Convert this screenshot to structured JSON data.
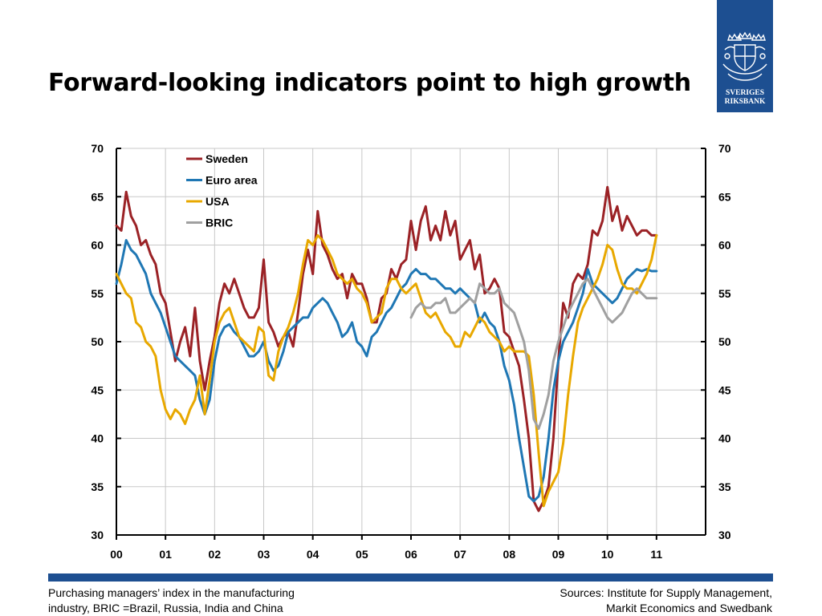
{
  "slide": {
    "title": "Forward-looking indicators point to high growth",
    "logo_line1": "SVERIGES",
    "logo_line2": "RIKSBANK",
    "footer_left_line1": "Purchasing managers’ index in the manufacturing",
    "footer_left_line2": "industry, BRIC =Brazil, Russia, India and China",
    "footer_right_line1": "Sources: Institute for Supply Management,",
    "footer_right_line2": "Markit Economics and Swedbank"
  },
  "colors": {
    "brand": "#1d4f91",
    "sweden": "#9b2226",
    "euro_area": "#1f77b4",
    "usa": "#e8a800",
    "bric": "#a0a0a0"
  },
  "chart_data": {
    "type": "line",
    "title": "",
    "xlabel": "",
    "ylabel": "",
    "x_tick_labels": [
      "00",
      "01",
      "02",
      "03",
      "04",
      "05",
      "06",
      "07",
      "08",
      "09",
      "10",
      "11"
    ],
    "y_tick_labels_left": [
      "30",
      "35",
      "40",
      "45",
      "50",
      "55",
      "60",
      "65",
      "70"
    ],
    "y_tick_labels_right": [
      "30",
      "35",
      "40",
      "45",
      "50",
      "55",
      "60",
      "65",
      "70"
    ],
    "xlim": [
      2000.0,
      2012.0
    ],
    "ylim": [
      30,
      70
    ],
    "grid": true,
    "legend_position": "top-left",
    "series": [
      {
        "name": "Sweden",
        "color": "#9b2226",
        "x": [
          2000.0,
          2000.1,
          2000.2,
          2000.3,
          2000.4,
          2000.5,
          2000.6,
          2000.7,
          2000.8,
          2000.9,
          2001.0,
          2001.1,
          2001.2,
          2001.3,
          2001.4,
          2001.5,
          2001.6,
          2001.7,
          2001.8,
          2001.9,
          2002.0,
          2002.1,
          2002.2,
          2002.3,
          2002.4,
          2002.5,
          2002.6,
          2002.7,
          2002.8,
          2002.9,
          2003.0,
          2003.1,
          2003.2,
          2003.3,
          2003.4,
          2003.5,
          2003.6,
          2003.7,
          2003.8,
          2003.9,
          2004.0,
          2004.1,
          2004.2,
          2004.3,
          2004.4,
          2004.5,
          2004.6,
          2004.7,
          2004.8,
          2004.9,
          2005.0,
          2005.1,
          2005.2,
          2005.3,
          2005.4,
          2005.5,
          2005.6,
          2005.7,
          2005.8,
          2005.9,
          2006.0,
          2006.1,
          2006.2,
          2006.3,
          2006.4,
          2006.5,
          2006.6,
          2006.7,
          2006.8,
          2006.9,
          2007.0,
          2007.1,
          2007.2,
          2007.3,
          2007.4,
          2007.5,
          2007.6,
          2007.7,
          2007.8,
          2007.9,
          2008.0,
          2008.1,
          2008.2,
          2008.3,
          2008.4,
          2008.5,
          2008.6,
          2008.7,
          2008.8,
          2008.9,
          2009.0,
          2009.1,
          2009.2,
          2009.3,
          2009.4,
          2009.5,
          2009.6,
          2009.7,
          2009.8,
          2009.9,
          2010.0,
          2010.1,
          2010.2,
          2010.3,
          2010.4,
          2010.5,
          2010.6,
          2010.7,
          2010.8,
          2010.9,
          2011.0
        ],
        "y": [
          62.0,
          61.5,
          65.5,
          63.0,
          62.0,
          60.0,
          60.5,
          59.0,
          58.0,
          55.0,
          54.0,
          51.0,
          48.0,
          50.0,
          51.5,
          48.5,
          53.5,
          48.0,
          45.0,
          48.0,
          50.5,
          54.0,
          56.0,
          55.0,
          56.5,
          55.0,
          53.5,
          52.5,
          52.5,
          53.5,
          58.5,
          52.0,
          51.0,
          49.5,
          50.5,
          51.0,
          49.5,
          53.0,
          57.0,
          59.5,
          57.0,
          63.5,
          60.0,
          59.0,
          57.5,
          56.5,
          57.0,
          54.5,
          57.0,
          56.0,
          56.0,
          54.5,
          52.0,
          52.0,
          54.5,
          55.0,
          57.5,
          56.5,
          58.0,
          58.5,
          62.5,
          59.5,
          62.5,
          64.0,
          60.5,
          62.0,
          60.5,
          63.5,
          61.0,
          62.5,
          58.5,
          59.5,
          60.5,
          57.5,
          59.0,
          55.0,
          55.5,
          56.5,
          55.5,
          51.0,
          50.5,
          49.0,
          47.5,
          44.0,
          40.0,
          33.5,
          32.5,
          33.5,
          35.0,
          40.0,
          48.0,
          54.0,
          52.5,
          56.0,
          57.0,
          56.5,
          58.0,
          61.5,
          61.0,
          62.5,
          66.0,
          62.5,
          64.0,
          61.5,
          63.0,
          62.0,
          61.0,
          61.5,
          61.5,
          61.0,
          61.0
        ]
      },
      {
        "name": "Euro area",
        "color": "#1f77b4",
        "x": [
          2000.0,
          2000.1,
          2000.2,
          2000.3,
          2000.4,
          2000.5,
          2000.6,
          2000.7,
          2000.8,
          2000.9,
          2001.0,
          2001.1,
          2001.2,
          2001.3,
          2001.4,
          2001.5,
          2001.6,
          2001.7,
          2001.8,
          2001.9,
          2002.0,
          2002.1,
          2002.2,
          2002.3,
          2002.4,
          2002.5,
          2002.6,
          2002.7,
          2002.8,
          2002.9,
          2003.0,
          2003.1,
          2003.2,
          2003.3,
          2003.4,
          2003.5,
          2003.6,
          2003.7,
          2003.8,
          2003.9,
          2004.0,
          2004.1,
          2004.2,
          2004.3,
          2004.4,
          2004.5,
          2004.6,
          2004.7,
          2004.8,
          2004.9,
          2005.0,
          2005.1,
          2005.2,
          2005.3,
          2005.4,
          2005.5,
          2005.6,
          2005.7,
          2005.8,
          2005.9,
          2006.0,
          2006.1,
          2006.2,
          2006.3,
          2006.4,
          2006.5,
          2006.6,
          2006.7,
          2006.8,
          2006.9,
          2007.0,
          2007.1,
          2007.2,
          2007.3,
          2007.4,
          2007.5,
          2007.6,
          2007.7,
          2007.8,
          2007.9,
          2008.0,
          2008.1,
          2008.2,
          2008.3,
          2008.4,
          2008.5,
          2008.6,
          2008.7,
          2008.8,
          2008.9,
          2009.0,
          2009.1,
          2009.2,
          2009.3,
          2009.4,
          2009.5,
          2009.6,
          2009.7,
          2009.8,
          2009.9,
          2010.0,
          2010.1,
          2010.2,
          2010.3,
          2010.4,
          2010.5,
          2010.6,
          2010.7,
          2010.8,
          2010.9,
          2011.0
        ],
        "y": [
          56.0,
          58.0,
          60.5,
          59.5,
          59.0,
          58.0,
          57.0,
          55.0,
          54.0,
          53.0,
          51.5,
          50.0,
          48.5,
          48.0,
          47.5,
          47.0,
          46.5,
          44.0,
          42.5,
          44.0,
          48.0,
          50.5,
          51.5,
          51.8,
          51.0,
          50.5,
          49.5,
          48.5,
          48.5,
          49.0,
          50.0,
          48.0,
          47.0,
          47.5,
          49.0,
          51.0,
          51.5,
          52.0,
          52.5,
          52.5,
          53.5,
          54.0,
          54.5,
          54.0,
          53.0,
          52.0,
          50.5,
          51.0,
          52.0,
          50.0,
          49.5,
          48.5,
          50.5,
          51.0,
          52.0,
          53.0,
          53.5,
          54.5,
          55.5,
          56.0,
          57.0,
          57.5,
          57.0,
          57.0,
          56.5,
          56.5,
          56.0,
          55.5,
          55.5,
          55.0,
          55.5,
          55.0,
          54.5,
          54.0,
          52.0,
          53.0,
          52.0,
          51.5,
          50.0,
          47.5,
          46.0,
          43.5,
          40.0,
          37.0,
          34.0,
          33.5,
          34.0,
          36.0,
          40.0,
          45.0,
          48.0,
          50.0,
          51.0,
          52.0,
          53.5,
          55.0,
          57.5,
          56.0,
          55.5,
          55.0,
          54.5,
          54.0,
          54.5,
          55.5,
          56.5,
          57.0,
          57.5,
          57.3,
          57.5,
          57.3,
          57.3
        ]
      },
      {
        "name": "USA",
        "color": "#e8a800",
        "x": [
          2000.0,
          2000.1,
          2000.2,
          2000.3,
          2000.4,
          2000.5,
          2000.6,
          2000.7,
          2000.8,
          2000.9,
          2001.0,
          2001.1,
          2001.2,
          2001.3,
          2001.4,
          2001.5,
          2001.6,
          2001.7,
          2001.8,
          2001.9,
          2002.0,
          2002.1,
          2002.2,
          2002.3,
          2002.4,
          2002.5,
          2002.6,
          2002.7,
          2002.8,
          2002.9,
          2003.0,
          2003.1,
          2003.2,
          2003.3,
          2003.4,
          2003.5,
          2003.6,
          2003.7,
          2003.8,
          2003.9,
          2004.0,
          2004.1,
          2004.2,
          2004.3,
          2004.4,
          2004.5,
          2004.6,
          2004.7,
          2004.8,
          2004.9,
          2005.0,
          2005.1,
          2005.2,
          2005.3,
          2005.4,
          2005.5,
          2005.6,
          2005.7,
          2005.8,
          2005.9,
          2006.0,
          2006.1,
          2006.2,
          2006.3,
          2006.4,
          2006.5,
          2006.6,
          2006.7,
          2006.8,
          2006.9,
          2007.0,
          2007.1,
          2007.2,
          2007.3,
          2007.4,
          2007.5,
          2007.6,
          2007.7,
          2007.8,
          2007.9,
          2008.0,
          2008.1,
          2008.2,
          2008.3,
          2008.4,
          2008.5,
          2008.6,
          2008.7,
          2008.8,
          2008.9,
          2009.0,
          2009.1,
          2009.2,
          2009.3,
          2009.4,
          2009.5,
          2009.6,
          2009.7,
          2009.8,
          2009.9,
          2010.0,
          2010.1,
          2010.2,
          2010.3,
          2010.4,
          2010.5,
          2010.6,
          2010.7,
          2010.8,
          2010.9,
          2011.0
        ],
        "y": [
          57.0,
          56.0,
          55.0,
          54.5,
          52.0,
          51.5,
          50.0,
          49.5,
          48.5,
          45.0,
          43.0,
          42.0,
          43.0,
          42.5,
          41.5,
          43.0,
          44.0,
          46.5,
          42.5,
          46.0,
          50.0,
          52.0,
          53.0,
          53.5,
          52.0,
          50.5,
          50.0,
          49.5,
          49.0,
          51.5,
          51.0,
          46.5,
          46.0,
          49.0,
          50.5,
          51.5,
          53.0,
          55.0,
          58.0,
          60.5,
          60.0,
          61.0,
          60.5,
          59.5,
          58.5,
          57.0,
          56.5,
          56.0,
          56.5,
          55.5,
          55.0,
          54.0,
          52.0,
          52.5,
          53.0,
          55.5,
          56.5,
          56.5,
          55.5,
          55.0,
          55.5,
          56.0,
          54.5,
          53.0,
          52.5,
          53.0,
          52.0,
          51.0,
          50.5,
          49.5,
          49.5,
          51.0,
          50.5,
          51.5,
          52.5,
          52.0,
          51.0,
          50.5,
          50.0,
          49.0,
          49.5,
          49.0,
          49.0,
          49.0,
          48.5,
          44.5,
          38.5,
          33.0,
          34.5,
          35.5,
          36.5,
          39.5,
          44.5,
          48.5,
          52.0,
          53.5,
          54.5,
          55.5,
          56.5,
          58.0,
          60.0,
          59.5,
          57.5,
          56.0,
          55.5,
          55.5,
          55.0,
          56.0,
          57.0,
          58.5,
          61.0
        ]
      },
      {
        "name": "BRIC",
        "color": "#a0a0a0",
        "x": [
          2006.0,
          2006.1,
          2006.2,
          2006.3,
          2006.4,
          2006.5,
          2006.6,
          2006.7,
          2006.8,
          2006.9,
          2007.0,
          2007.1,
          2007.2,
          2007.3,
          2007.4,
          2007.5,
          2007.6,
          2007.7,
          2007.8,
          2007.9,
          2008.0,
          2008.1,
          2008.2,
          2008.3,
          2008.4,
          2008.5,
          2008.6,
          2008.7,
          2008.8,
          2008.9,
          2009.0,
          2009.1,
          2009.2,
          2009.3,
          2009.4,
          2009.5,
          2009.6,
          2009.7,
          2009.8,
          2009.9,
          2010.0,
          2010.1,
          2010.2,
          2010.3,
          2010.4,
          2010.5,
          2010.6,
          2010.7,
          2010.8,
          2010.9,
          2011.0
        ],
        "y": [
          52.5,
          53.5,
          54.0,
          53.5,
          53.5,
          54.0,
          54.0,
          54.5,
          53.0,
          53.0,
          53.5,
          54.0,
          54.5,
          54.0,
          56.0,
          55.5,
          55.0,
          55.0,
          55.5,
          54.0,
          53.5,
          53.0,
          51.5,
          50.0,
          47.0,
          42.0,
          41.0,
          42.5,
          44.5,
          48.0,
          50.0,
          51.5,
          53.0,
          54.0,
          55.0,
          56.0,
          56.5,
          55.5,
          54.5,
          53.5,
          52.5,
          52.0,
          52.5,
          53.0,
          54.0,
          55.0,
          55.5,
          55.0,
          54.5,
          54.5,
          54.5
        ]
      }
    ]
  }
}
